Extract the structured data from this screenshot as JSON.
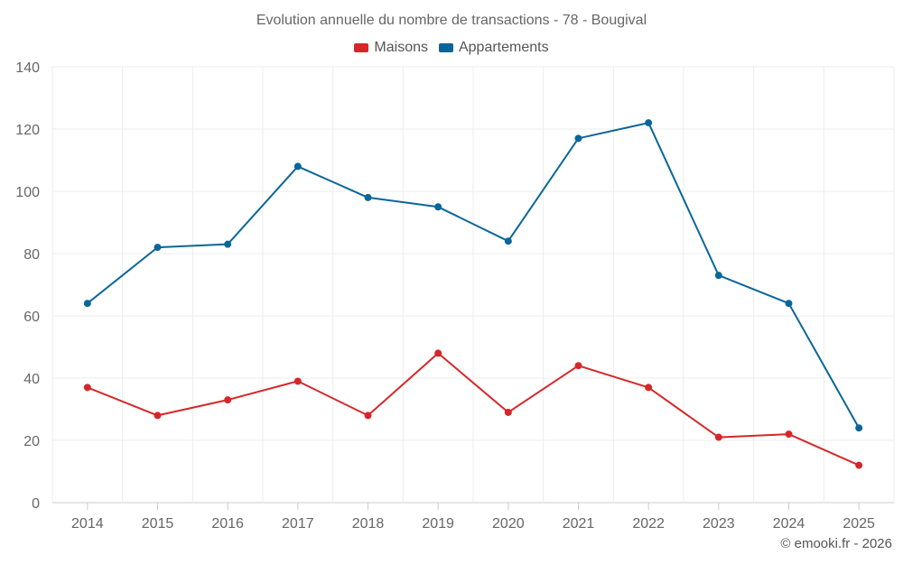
{
  "chart_data": {
    "type": "line",
    "title": "Evolution annuelle du nombre de transactions - 78 - Bougival",
    "categories": [
      "2014",
      "2015",
      "2016",
      "2017",
      "2018",
      "2019",
      "2020",
      "2021",
      "2022",
      "2023",
      "2024",
      "2025"
    ],
    "series": [
      {
        "name": "Maisons",
        "color": "#d62728",
        "values": [
          37,
          28,
          33,
          39,
          28,
          48,
          29,
          44,
          37,
          21,
          22,
          12
        ]
      },
      {
        "name": "Appartements",
        "color": "#0a6699",
        "values": [
          64,
          82,
          83,
          108,
          98,
          95,
          84,
          117,
          122,
          73,
          64,
          24
        ]
      }
    ],
    "ylim": [
      0,
      140
    ],
    "yticks": [
      0,
      20,
      40,
      60,
      80,
      100,
      120,
      140
    ],
    "grid": true,
    "legend_position": "top-center"
  },
  "footer": {
    "copyright": "© emooki.fr - 2026"
  }
}
